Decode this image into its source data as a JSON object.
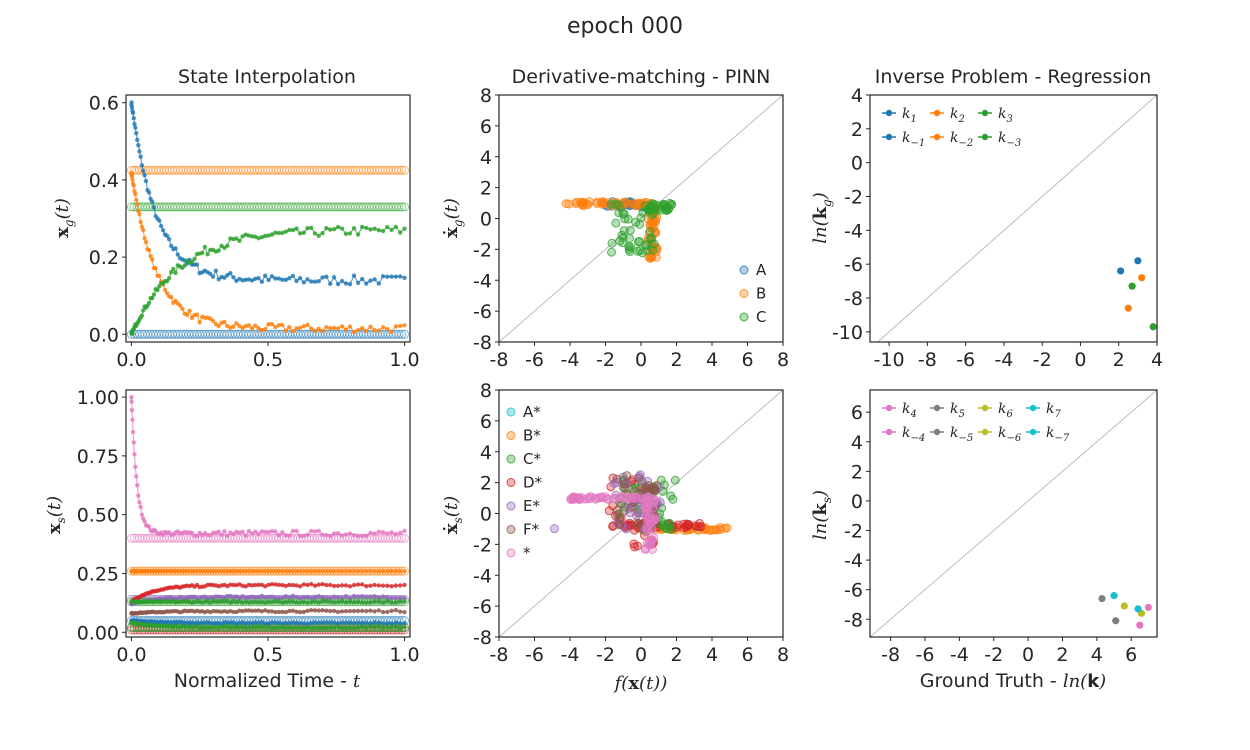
{
  "figure": {
    "suptitle": "epoch 000"
  },
  "colors": {
    "A": "#1f77b4",
    "B": "#ff7f0e",
    "C": "#2ca02c",
    "D": "#d62728",
    "E": "#9467bd",
    "F": "#8c564b",
    "G": "#e377c2",
    "H": "#7f7f7f",
    "I": "#bcbd22",
    "J": "#17becf",
    "diag": "#bdbdbd"
  },
  "chart_data": [
    {
      "id": "p11",
      "type": "line",
      "title": "State Interpolation",
      "ylabel": "x_g(t)",
      "ylabel_display": "x_g(t)",
      "xlim": [
        -0.02,
        1.02
      ],
      "ylim": [
        -0.02,
        0.62
      ],
      "xticks": [
        0.0,
        0.5,
        1.0
      ],
      "xtick_labels": [
        "0.0",
        "0.5",
        "1.0"
      ],
      "yticks": [
        0.0,
        0.2,
        0.4,
        0.6
      ],
      "ytick_labels": [
        "0.0",
        "0.2",
        "0.4",
        "0.6"
      ],
      "series": [
        {
          "name": "A",
          "color": "A",
          "kind": "decay",
          "start": 0.6,
          "end": 0.14,
          "tau": 0.09,
          "noise": 0.012,
          "interp_const": 0.0
        },
        {
          "name": "B",
          "color": "B",
          "kind": "decay",
          "start": 0.42,
          "end": 0.015,
          "tau": 0.09,
          "noise": 0.01,
          "interp_const": 0.425
        },
        {
          "name": "C",
          "color": "C",
          "kind": "rise",
          "start": 0.0,
          "end": 0.27,
          "tau": 0.17,
          "noise": 0.012,
          "interp_const": 0.33
        }
      ]
    },
    {
      "id": "p12",
      "type": "scatter",
      "title": "Derivative-matching - PINN",
      "xlabel": "",
      "ylabel": "ẋ_g(t)",
      "xlim": [
        -8,
        8
      ],
      "ylim": [
        -8,
        8
      ],
      "xticks": [
        -8,
        -6,
        -4,
        -2,
        0,
        2,
        4,
        6,
        8
      ],
      "xtick_labels": [
        "-8",
        "-6",
        "-4",
        "-2",
        "0",
        "2",
        "4",
        "6",
        "8"
      ],
      "yticks": [
        -8,
        -6,
        -4,
        -2,
        0,
        2,
        4,
        6,
        8
      ],
      "ytick_labels": [
        "-8",
        "-6",
        "-4",
        "-2",
        "0",
        "2",
        "4",
        "6",
        "8"
      ],
      "legend": [
        "A",
        "B",
        "C"
      ],
      "clusters": [
        {
          "name": "A",
          "color": "A",
          "x_range": [
            -2,
            0.7
          ],
          "y_range": [
            0.7,
            1.1
          ],
          "n": 25
        },
        {
          "name": "B",
          "color": "B",
          "x_range": [
            -4.3,
            0.6
          ],
          "y_range": [
            0.8,
            1.1
          ],
          "n": 45
        },
        {
          "name": "B",
          "color": "B",
          "x_range": [
            0.4,
            0.9
          ],
          "y_range": [
            -2.6,
            0.8
          ],
          "n": 45
        },
        {
          "name": "C",
          "color": "C",
          "x_range": [
            -1.7,
            0.8
          ],
          "y_range": [
            -2.4,
            1.0
          ],
          "n": 45
        },
        {
          "name": "C",
          "color": "C",
          "x_range": [
            0.3,
            1.8
          ],
          "y_range": [
            0.5,
            1.0
          ],
          "n": 25
        }
      ]
    },
    {
      "id": "p13",
      "type": "scatter",
      "title": "Inverse Problem - Regression",
      "ylabel": "ln(k_g)",
      "xlim": [
        -11,
        4
      ],
      "ylim": [
        -10.6,
        4
      ],
      "xticks": [
        -10,
        -8,
        -6,
        -4,
        -2,
        0,
        2,
        4
      ],
      "xtick_labels": [
        "-10",
        "-8",
        "-6",
        "-4",
        "-2",
        "0",
        "2",
        "4"
      ],
      "yticks": [
        -10,
        -8,
        -6,
        -4,
        -2,
        0,
        2,
        4
      ],
      "ytick_labels": [
        "-10",
        "-8",
        "-6",
        "-4",
        "-2",
        "0",
        "2",
        "4"
      ],
      "legend": [
        {
          "label": "k1",
          "color": "A"
        },
        {
          "label": "k2",
          "color": "B"
        },
        {
          "label": "k3",
          "color": "C"
        },
        {
          "label": "k-1",
          "color": "A"
        },
        {
          "label": "k-2",
          "color": "B"
        },
        {
          "label": "k-3",
          "color": "C"
        }
      ],
      "points": [
        {
          "x": 3.0,
          "y": -5.8,
          "color": "A"
        },
        {
          "x": 2.1,
          "y": -6.4,
          "color": "A"
        },
        {
          "x": 3.2,
          "y": -6.8,
          "color": "B"
        },
        {
          "x": 2.5,
          "y": -8.6,
          "color": "B"
        },
        {
          "x": 2.7,
          "y": -7.3,
          "color": "C"
        },
        {
          "x": 3.8,
          "y": -9.7,
          "color": "C"
        }
      ]
    },
    {
      "id": "p21",
      "type": "line",
      "ylabel": "x_s(t)",
      "xlabel": "Normalized Time - t",
      "xlim": [
        -0.02,
        1.02
      ],
      "ylim": [
        -0.02,
        1.03
      ],
      "xticks": [
        0.0,
        0.5,
        1.0
      ],
      "xtick_labels": [
        "0.0",
        "0.5",
        "1.0"
      ],
      "yticks": [
        0.0,
        0.25,
        0.5,
        0.75,
        1.0
      ],
      "ytick_labels": [
        "0.00",
        "0.25",
        "0.50",
        "0.75",
        "1.00"
      ],
      "series": [
        {
          "name": "G",
          "color": "G",
          "kind": "decay",
          "start": 1.0,
          "end": 0.42,
          "tau": 0.02,
          "noise": 0.012,
          "interp_const": 0.4
        },
        {
          "name": "B",
          "color": "B",
          "kind": "const",
          "start": 0.26,
          "end": 0.26,
          "tau": 1,
          "noise": 0.0,
          "interp_const": 0.26
        },
        {
          "name": "D",
          "color": "D",
          "kind": "rise",
          "start": 0.13,
          "end": 0.2,
          "tau": 0.08,
          "noise": 0.005,
          "interp_const": 0.01
        },
        {
          "name": "E",
          "color": "E",
          "kind": "rise",
          "start": 0.12,
          "end": 0.15,
          "tau": 0.08,
          "noise": 0.005,
          "interp_const": 0.14
        },
        {
          "name": "C",
          "color": "C",
          "kind": "decay",
          "start": 0.13,
          "end": 0.13,
          "tau": 0.1,
          "noise": 0.004,
          "interp_const": 0.13
        },
        {
          "name": "F",
          "color": "F",
          "kind": "decay",
          "start": 0.08,
          "end": 0.09,
          "tau": 0.1,
          "noise": 0.004,
          "interp_const": 0.02
        },
        {
          "name": "A",
          "color": "A",
          "kind": "decay",
          "start": 0.05,
          "end": 0.04,
          "tau": 0.1,
          "noise": 0.003,
          "interp_const": 0.05
        },
        {
          "name": "C2",
          "color": "C",
          "kind": "decay",
          "start": 0.04,
          "end": 0.02,
          "tau": 0.1,
          "noise": 0.003,
          "interp_const": 0.02
        }
      ]
    },
    {
      "id": "p22",
      "type": "scatter",
      "xlabel": "f(x(t))",
      "ylabel": "ẋ_s(t)",
      "xlim": [
        -8,
        8
      ],
      "ylim": [
        -8,
        8
      ],
      "xticks": [
        -8,
        -6,
        -4,
        -2,
        0,
        2,
        4,
        6,
        8
      ],
      "xtick_labels": [
        "-8",
        "-6",
        "-4",
        "-2",
        "0",
        "2",
        "4",
        "6",
        "8"
      ],
      "yticks": [
        -8,
        -6,
        -4,
        -2,
        0,
        2,
        4,
        6,
        8
      ],
      "ytick_labels": [
        "-8",
        "-6",
        "-4",
        "-2",
        "0",
        "2",
        "4",
        "6",
        "8"
      ],
      "legend": [
        "A*",
        "B*",
        "C*",
        "D*",
        "E*",
        "F*",
        "*"
      ],
      "legend_colors": [
        "J",
        "B",
        "C",
        "D",
        "E",
        "F",
        "G"
      ],
      "clusters": [
        {
          "name": "B*",
          "color": "B",
          "x_range": [
            0.5,
            4.9
          ],
          "y_range": [
            -1.1,
            -0.9
          ],
          "n": 35
        },
        {
          "name": "D*",
          "color": "D",
          "x_range": [
            -1.8,
            3.5
          ],
          "y_range": [
            -1.0,
            -0.6
          ],
          "n": 45
        },
        {
          "name": "D*",
          "color": "D",
          "x_range": [
            -1.8,
            1.0
          ],
          "y_range": [
            -2.5,
            2.4
          ],
          "n": 30
        },
        {
          "name": "C*",
          "color": "C",
          "x_range": [
            -1.5,
            2.0
          ],
          "y_range": [
            -1.1,
            2.2
          ],
          "n": 40
        },
        {
          "name": "E*",
          "color": "E",
          "x_range": [
            -1.5,
            1.2
          ],
          "y_range": [
            -1.0,
            2.6
          ],
          "n": 35
        },
        {
          "name": "E*",
          "color": "E",
          "x_range": [
            -5.0,
            -4.8
          ],
          "y_range": [
            -1.1,
            -0.9
          ],
          "n": 1
        },
        {
          "name": "F*",
          "color": "F",
          "x_range": [
            -1.4,
            1.0
          ],
          "y_range": [
            -1.2,
            2.5
          ],
          "n": 40
        },
        {
          "name": "*",
          "color": "G",
          "x_range": [
            -4.2,
            0.6
          ],
          "y_range": [
            0.9,
            1.1
          ],
          "n": 45
        },
        {
          "name": "*",
          "color": "G",
          "x_range": [
            0.2,
            0.8
          ],
          "y_range": [
            -2.4,
            1.0
          ],
          "n": 40
        }
      ]
    },
    {
      "id": "p23",
      "type": "scatter",
      "xlabel": "Ground Truth - ln(k)",
      "ylabel": "ln(k_s)",
      "xlim": [
        -9.2,
        7.5
      ],
      "ylim": [
        -9.2,
        7.5
      ],
      "xticks": [
        -8,
        -6,
        -4,
        -2,
        0,
        2,
        4,
        6
      ],
      "xtick_labels": [
        "-8",
        "-6",
        "-4",
        "-2",
        "0",
        "2",
        "4",
        "6"
      ],
      "yticks": [
        -8,
        -6,
        -4,
        -2,
        0,
        2,
        4,
        6
      ],
      "ytick_labels": [
        "-8",
        "-6",
        "-4",
        "-2",
        "0",
        "2",
        "4",
        "6"
      ],
      "legend": [
        {
          "label": "k4",
          "color": "G"
        },
        {
          "label": "k5",
          "color": "H"
        },
        {
          "label": "k6",
          "color": "I"
        },
        {
          "label": "k7",
          "color": "J"
        },
        {
          "label": "k-4",
          "color": "G"
        },
        {
          "label": "k-5",
          "color": "H"
        },
        {
          "label": "k-6",
          "color": "I"
        },
        {
          "label": "k-7",
          "color": "J"
        }
      ],
      "points": [
        {
          "x": 7.0,
          "y": -7.2,
          "color": "G"
        },
        {
          "x": 6.5,
          "y": -8.4,
          "color": "G"
        },
        {
          "x": 4.3,
          "y": -6.6,
          "color": "H"
        },
        {
          "x": 5.1,
          "y": -8.1,
          "color": "H"
        },
        {
          "x": 5.6,
          "y": -7.1,
          "color": "I"
        },
        {
          "x": 6.6,
          "y": -7.6,
          "color": "I"
        },
        {
          "x": 5.0,
          "y": -6.4,
          "color": "J"
        },
        {
          "x": 6.4,
          "y": -7.3,
          "color": "J"
        }
      ]
    }
  ]
}
